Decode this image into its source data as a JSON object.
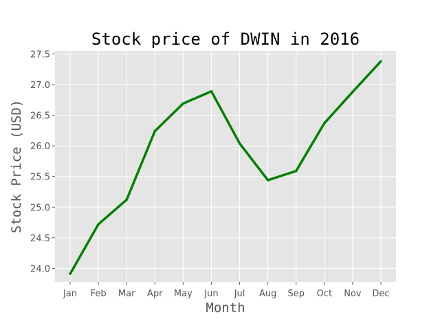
{
  "chart_data": {
    "type": "line",
    "title": "Stock price of DWIN in 2016",
    "xlabel": "Month",
    "ylabel": "Stock Price (USD)",
    "categories": [
      "Jan",
      "Feb",
      "Mar",
      "Apr",
      "May",
      "Jun",
      "Jul",
      "Aug",
      "Sep",
      "Oct",
      "Nov",
      "Dec"
    ],
    "series": [
      {
        "values": [
          23.91,
          24.72,
          25.12,
          26.24,
          26.69,
          26.89,
          26.04,
          25.44,
          25.59,
          26.37,
          26.88,
          27.38
        ]
      }
    ],
    "ylim": [
      23.78,
      27.55
    ],
    "yticks": [
      24.0,
      24.5,
      25.0,
      25.5,
      26.0,
      26.5,
      27.0,
      27.5
    ],
    "ytick_labels": [
      "24.0",
      "24.5",
      "25.0",
      "25.5",
      "26.0",
      "26.5",
      "27.0",
      "27.5"
    ],
    "grid": true,
    "legend": "none"
  },
  "colors": {
    "line": "#008000",
    "plot_background": "#e5e5e5",
    "grid": "#ffffff",
    "tick_text": "#555555"
  }
}
